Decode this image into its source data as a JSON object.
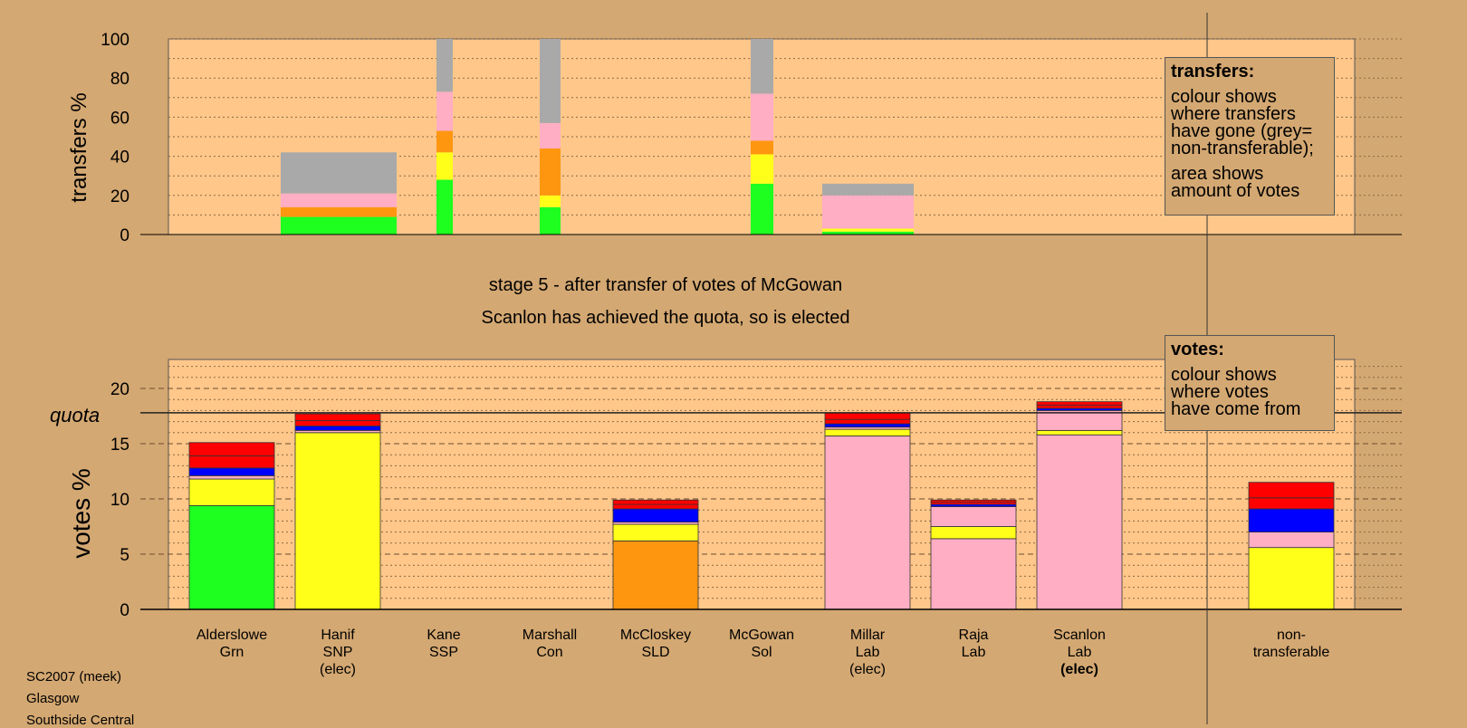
{
  "chart_data": [
    {
      "type": "bar",
      "title": "transfers",
      "ylabel": "transfers %",
      "ylim": [
        0,
        100
      ],
      "yticks": [
        0,
        20,
        40,
        60,
        80,
        100
      ],
      "stack_order": [
        "green",
        "yellow",
        "orange",
        "pink",
        "grey"
      ],
      "bars": [
        {
          "candidate": "Hanif",
          "segments": [
            9,
            0,
            5,
            7,
            21
          ]
        },
        {
          "candidate": "Kane",
          "segments": [
            28,
            14,
            11,
            20,
            27
          ]
        },
        {
          "candidate": "McCloskey",
          "segments": [
            14,
            6,
            24,
            13,
            43
          ]
        },
        {
          "candidate": "Millar",
          "segments": [
            26,
            15,
            7,
            24,
            28
          ]
        },
        {
          "candidate": "Raja",
          "segments": [
            1.5,
            1.5,
            0,
            17,
            6
          ]
        }
      ]
    },
    {
      "type": "bar",
      "title": "votes",
      "ylabel": "votes %",
      "ylim": [
        0,
        23
      ],
      "yticks": [
        0,
        5,
        10,
        15,
        20
      ],
      "quota": 17.8,
      "quota_label": "quota",
      "categories": [
        "Alderslowe",
        "Hanif",
        "Kane",
        "Marshall",
        "McCloskey",
        "McGowan",
        "Millar",
        "Raja",
        "Scanlon",
        "non-transferable"
      ],
      "stacks": [
        [
          {
            "c": "green",
            "v": 9.4
          },
          {
            "c": "yellow",
            "v": 2.4
          },
          {
            "c": "pink",
            "v": 0.3
          },
          {
            "c": "blue",
            "v": 0.7
          },
          {
            "c": "red",
            "v": 1.1
          },
          {
            "c": "red",
            "v": 1.2
          }
        ],
        [
          {
            "c": "yellow",
            "v": 16.0
          },
          {
            "c": "pink",
            "v": 0.2
          },
          {
            "c": "blue",
            "v": 0.4
          },
          {
            "c": "red",
            "v": 0.5
          },
          {
            "c": "red",
            "v": 0.6
          }
        ],
        [],
        [],
        [
          {
            "c": "orange",
            "v": 6.2
          },
          {
            "c": "yellow",
            "v": 1.5
          },
          {
            "c": "pink",
            "v": 0.2
          },
          {
            "c": "blue",
            "v": 1.2
          },
          {
            "c": "red",
            "v": 0.4
          },
          {
            "c": "red",
            "v": 0.4
          }
        ],
        [],
        [
          {
            "c": "pink",
            "v": 15.7
          },
          {
            "c": "yellow",
            "v": 0.6
          },
          {
            "c": "pink",
            "v": 0.2
          },
          {
            "c": "blue",
            "v": 0.3
          },
          {
            "c": "red",
            "v": 0.4
          },
          {
            "c": "red",
            "v": 0.6
          }
        ],
        [
          {
            "c": "pink",
            "v": 6.4
          },
          {
            "c": "yellow",
            "v": 1.1
          },
          {
            "c": "pink",
            "v": 1.8
          },
          {
            "c": "blue",
            "v": 0.2
          },
          {
            "c": "red",
            "v": 0.2
          },
          {
            "c": "red",
            "v": 0.2
          }
        ],
        [
          {
            "c": "pink",
            "v": 15.8
          },
          {
            "c": "yellow",
            "v": 0.4
          },
          {
            "c": "pink",
            "v": 1.8
          },
          {
            "c": "blue",
            "v": 0.2
          },
          {
            "c": "red",
            "v": 0.3
          },
          {
            "c": "red",
            "v": 0.3
          }
        ],
        [
          {
            "c": "yellow",
            "v": 5.6
          },
          {
            "c": "pink",
            "v": 1.4
          },
          {
            "c": "blue",
            "v": 2.1
          },
          {
            "c": "red",
            "v": 1.0
          },
          {
            "c": "red",
            "v": 1.4
          }
        ]
      ]
    }
  ],
  "colors": {
    "background": "#D4A872",
    "plot": "#FFC78A",
    "green": "#1FFF1F",
    "yellow": "#FFFF1A",
    "orange": "#FF9610",
    "pink": "#FFAEC4",
    "grey": "#A9A9A9",
    "blue": "#0000FF",
    "red": "#FF0000"
  },
  "candidate_labels": [
    [
      "Alderslowe",
      "Grn"
    ],
    [
      "Hanif",
      "SNP",
      "(elec)"
    ],
    [
      "Kane",
      "SSP"
    ],
    [
      "Marshall",
      "Con"
    ],
    [
      "McCloskey",
      "SLD"
    ],
    [
      "McGowan",
      "Sol"
    ],
    [
      "Millar",
      "Lab",
      "(elec)"
    ],
    [
      "Raja",
      "Lab"
    ],
    [
      "Scanlon",
      "Lab",
      "(elec)"
    ],
    [
      "non-",
      "transferable"
    ]
  ],
  "stage_text": "stage 5 - after transfer of votes of McGowan",
  "result_text": "Scanlon has achieved the quota, so is elected",
  "transfers_box": {
    "title": "transfers:",
    "lines1": [
      "colour shows",
      "where transfers",
      "have gone (grey=",
      "non-transferable);"
    ],
    "lines2": [
      "area shows",
      "amount of votes"
    ]
  },
  "votes_box": {
    "title": "votes:",
    "lines": [
      "colour shows",
      "where votes",
      "have come from"
    ]
  },
  "footer": [
    "SC2007 (meek)",
    "Glasgow",
    "Southside Central"
  ]
}
